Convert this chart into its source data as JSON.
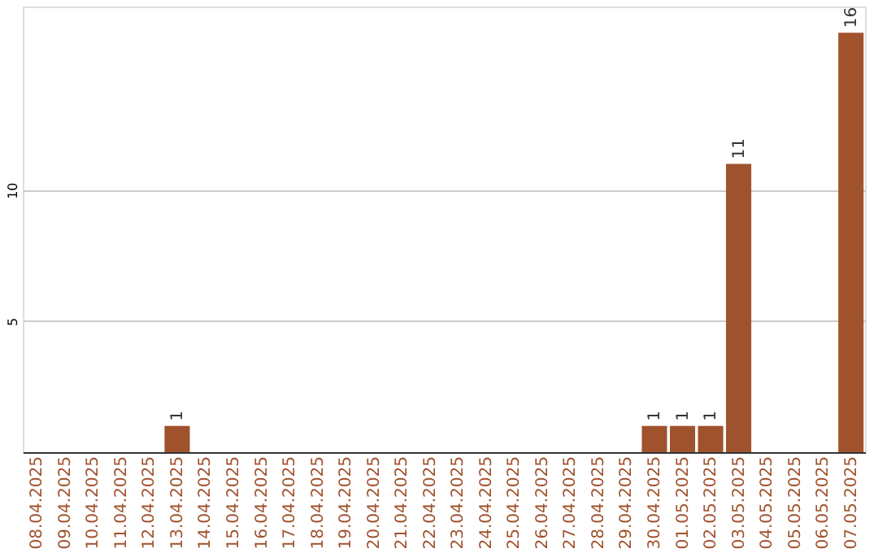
{
  "chart_data": {
    "type": "bar",
    "categories": [
      "08.04.2025",
      "09.04.2025",
      "10.04.2025",
      "11.04.2025",
      "12.04.2025",
      "13.04.2025",
      "14.04.2025",
      "15.04.2025",
      "16.04.2025",
      "17.04.2025",
      "18.04.2025",
      "19.04.2025",
      "20.04.2025",
      "21.04.2025",
      "22.04.2025",
      "23.04.2025",
      "24.04.2025",
      "25.04.2025",
      "26.04.2025",
      "27.04.2025",
      "28.04.2025",
      "29.04.2025",
      "30.04.2025",
      "01.05.2025",
      "02.05.2025",
      "03.05.2025",
      "04.05.2025",
      "05.05.2025",
      "06.05.2025",
      "07.05.2025"
    ],
    "values": [
      0,
      0,
      0,
      0,
      0,
      1,
      0,
      0,
      0,
      0,
      0,
      0,
      0,
      0,
      0,
      0,
      0,
      0,
      0,
      0,
      0,
      0,
      1,
      1,
      1,
      11,
      0,
      0,
      0,
      16
    ],
    "value_labels": [
      null,
      null,
      null,
      null,
      null,
      "1",
      null,
      null,
      null,
      null,
      null,
      null,
      null,
      null,
      null,
      null,
      null,
      null,
      null,
      null,
      null,
      null,
      "1",
      "1",
      "1",
      "11",
      null,
      null,
      null,
      "16"
    ],
    "color": "#a0522d",
    "ylim": [
      0,
      17
    ],
    "yticks": [
      5,
      10
    ],
    "grid": "y"
  }
}
